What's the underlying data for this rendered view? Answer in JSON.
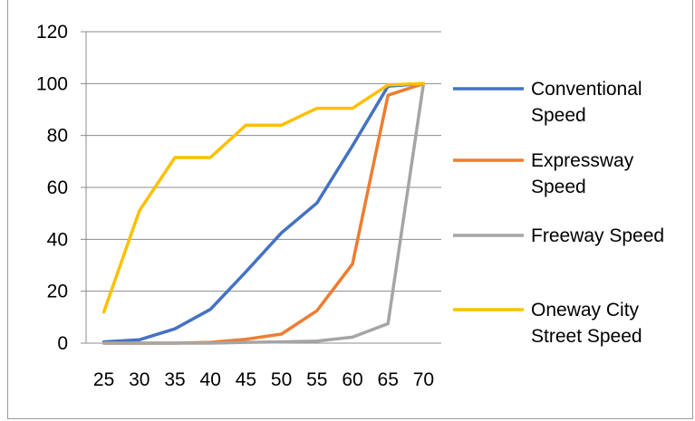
{
  "chart_data": {
    "type": "line",
    "title": "",
    "xlabel": "",
    "ylabel": "",
    "x": [
      25,
      30,
      35,
      40,
      45,
      50,
      55,
      60,
      65,
      70
    ],
    "x_tick_labels": [
      "25",
      "30",
      "35",
      "40",
      "45",
      "50",
      "55",
      "60",
      "65",
      "70"
    ],
    "ylim": [
      0,
      120
    ],
    "y_ticks": [
      0,
      20,
      40,
      60,
      80,
      100,
      120
    ],
    "y_tick_labels": [
      "0",
      "20",
      "40",
      "60",
      "80",
      "100",
      "120"
    ],
    "grid": "horizontal",
    "legend": "right",
    "series": [
      {
        "name": "Conventional Speed",
        "legend_lines": [
          "Conventional",
          "Speed"
        ],
        "color": "#4472C4",
        "values": [
          0.5,
          1.3,
          5.5,
          13,
          27.5,
          42.5,
          54,
          76,
          99,
          100
        ]
      },
      {
        "name": "Expressway Speed",
        "legend_lines": [
          "Expressway",
          "Speed"
        ],
        "color": "#ED7D31",
        "values": [
          0,
          0,
          0,
          0.3,
          1.5,
          3.5,
          12.5,
          30.5,
          95.5,
          100
        ]
      },
      {
        "name": "Freeway Speed",
        "legend_lines": [
          "Freeway Speed"
        ],
        "color": "#A5A5A5",
        "values": [
          0,
          0,
          0,
          0,
          0.3,
          0.5,
          0.8,
          2.3,
          7.5,
          100
        ]
      },
      {
        "name": "Oneway City Street Speed",
        "legend_lines": [
          "Oneway City",
          "Street Speed"
        ],
        "color": "#FFC000",
        "values": [
          12,
          51,
          71.5,
          71.5,
          84,
          84,
          90.5,
          90.5,
          99.5,
          100
        ]
      }
    ]
  }
}
